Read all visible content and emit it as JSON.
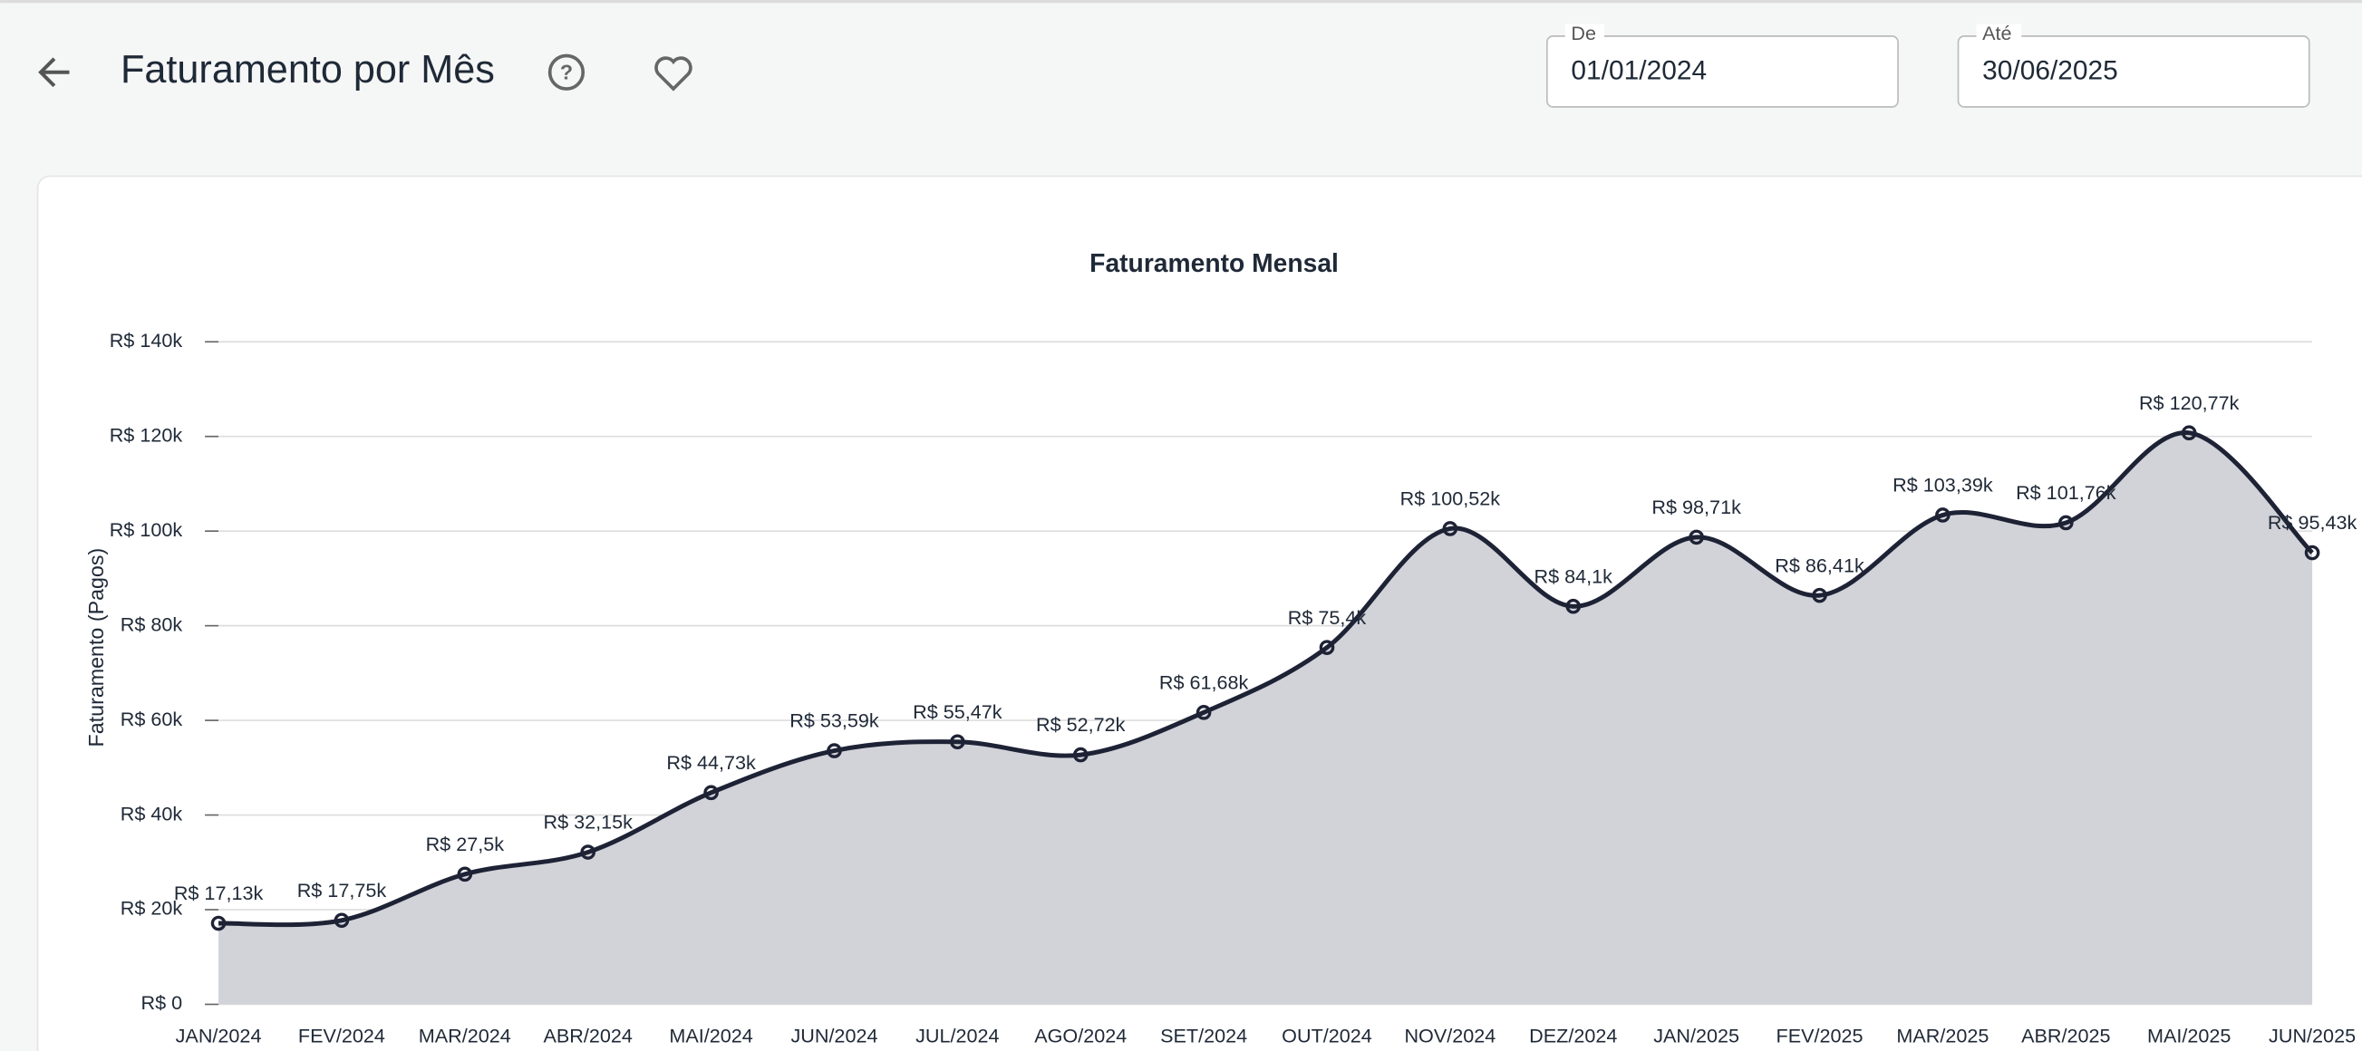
{
  "header": {
    "title": "Faturamento por Mês",
    "date_from": {
      "label": "De",
      "value": "01/01/2024"
    },
    "date_to": {
      "label": "Até",
      "value": "30/06/2025"
    }
  },
  "chart_data": {
    "type": "area",
    "title": "Faturamento Mensal",
    "y_label": "Faturamento (Pagos)",
    "categories": [
      "JAN/2024",
      "FEV/2024",
      "MAR/2024",
      "ABR/2024",
      "MAI/2024",
      "JUN/2024",
      "JUL/2024",
      "AGO/2024",
      "SET/2024",
      "OUT/2024",
      "NOV/2024",
      "DEZ/2024",
      "JAN/2025",
      "FEV/2025",
      "MAR/2025",
      "ABR/2025",
      "MAI/2025",
      "JUN/2025"
    ],
    "series": [
      {
        "name": "Faturamento",
        "color": "#1e2235",
        "fill": "#d2d3d9",
        "values": [
          17130,
          17750,
          27500,
          32150,
          44730,
          53590,
          55470,
          52720,
          61680,
          75400,
          100520,
          84100,
          98710,
          86410,
          103390,
          101760,
          120770,
          95430
        ],
        "value_labels": [
          "R$ 17,13k",
          "R$ 17,75k",
          "R$ 27,5k",
          "R$ 32,15k",
          "R$ 44,73k",
          "R$ 53,59k",
          "R$ 55,47k",
          "R$ 52,72k",
          "R$ 61,68k",
          "R$ 75,4k",
          "R$ 100,52k",
          "R$ 84,1k",
          "R$ 98,71k",
          "R$ 86,41k",
          "R$ 103,39k",
          "R$ 101,76k",
          "R$ 120,77k",
          "R$ 95,43k"
        ]
      }
    ],
    "ylim": [
      0,
      140000
    ],
    "yticks": [
      {
        "value": 0,
        "label": "R$ 0"
      },
      {
        "value": 20000,
        "label": "R$ 20k"
      },
      {
        "value": 40000,
        "label": "R$ 40k"
      },
      {
        "value": 60000,
        "label": "R$ 60k"
      },
      {
        "value": 80000,
        "label": "R$ 80k"
      },
      {
        "value": 100000,
        "label": "R$ 100k"
      },
      {
        "value": 120000,
        "label": "R$ 120k"
      },
      {
        "value": 140000,
        "label": "R$ 140k"
      }
    ],
    "grid": true
  }
}
